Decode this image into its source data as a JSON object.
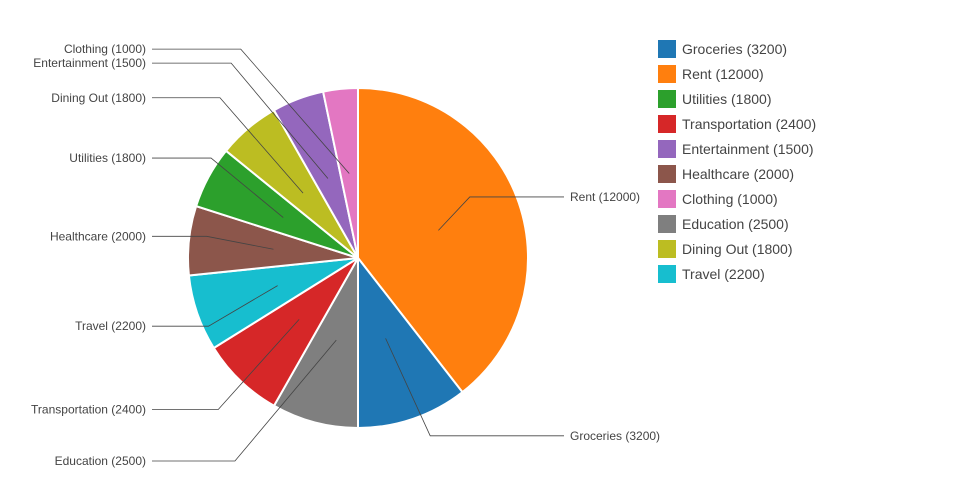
{
  "chart_data": {
    "type": "pie",
    "title": "",
    "slices": [
      {
        "label": "Rent (12000)",
        "name": "Rent",
        "value": 12000,
        "color": "#ff7f0e"
      },
      {
        "label": "Groceries (3200)",
        "name": "Groceries",
        "value": 3200,
        "color": "#1f77b4"
      },
      {
        "label": "Education (2500)",
        "name": "Education",
        "value": 2500,
        "color": "#7f7f7f"
      },
      {
        "label": "Transportation (2400)",
        "name": "Transportation",
        "value": 2400,
        "color": "#d62728"
      },
      {
        "label": "Travel (2200)",
        "name": "Travel",
        "value": 2200,
        "color": "#17becf"
      },
      {
        "label": "Healthcare (2000)",
        "name": "Healthcare",
        "value": 2000,
        "color": "#8c564b"
      },
      {
        "label": "Utilities (1800)",
        "name": "Utilities",
        "value": 1800,
        "color": "#2ca02c"
      },
      {
        "label": "Dining Out (1800)",
        "name": "Dining Out",
        "value": 1800,
        "color": "#bcbd22"
      },
      {
        "label": "Entertainment (1500)",
        "name": "Entertainment",
        "value": 1500,
        "color": "#9467bd"
      },
      {
        "label": "Clothing (1000)",
        "name": "Clothing",
        "value": 1000,
        "color": "#e377c2"
      }
    ],
    "legend": {
      "placement": "right",
      "entries": [
        {
          "label": "Groceries (3200)",
          "color": "#1f77b4"
        },
        {
          "label": "Rent (12000)",
          "color": "#ff7f0e"
        },
        {
          "label": "Utilities (1800)",
          "color": "#2ca02c"
        },
        {
          "label": "Transportation (2400)",
          "color": "#d62728"
        },
        {
          "label": "Entertainment (1500)",
          "color": "#9467bd"
        },
        {
          "label": "Healthcare (2000)",
          "color": "#8c564b"
        },
        {
          "label": "Clothing (1000)",
          "color": "#e377c2"
        },
        {
          "label": "Education (2500)",
          "color": "#7f7f7f"
        },
        {
          "label": "Dining Out (1800)",
          "color": "#bcbd22"
        },
        {
          "label": "Travel (2200)",
          "color": "#17becf"
        }
      ]
    }
  }
}
